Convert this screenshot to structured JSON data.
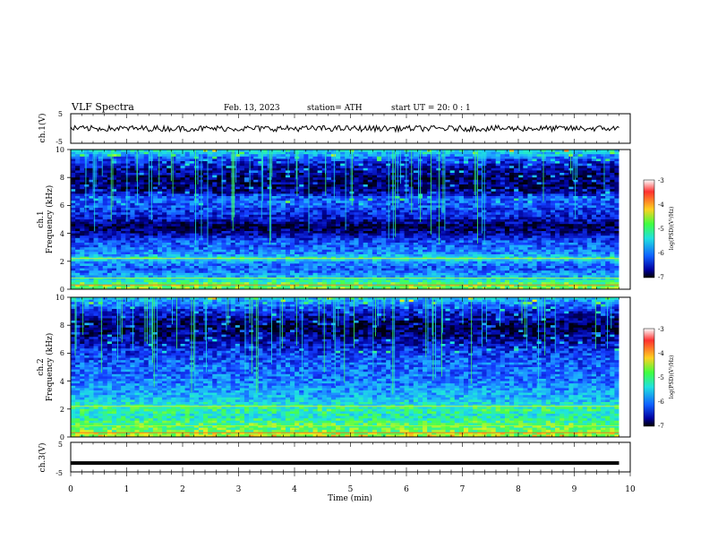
{
  "header": {
    "title": "VLF  Spectra",
    "date": "Feb. 13, 2023",
    "station": "station= ATH",
    "start": "start  UT  =    20: 0   : 1"
  },
  "panels": {
    "ch1_voltage": {
      "ylabel": "ch.1(V)",
      "ticks": [
        "5",
        "-5"
      ]
    },
    "ch1_spectrogram": {
      "ylabel_ch": "ch.1",
      "ylabel": "Frequency  (kHz)",
      "ticks": [
        "10",
        "8",
        "6",
        "4",
        "2",
        "0"
      ]
    },
    "ch2_spectrogram": {
      "ylabel_ch": "ch.2",
      "ylabel": "Frequency  (kHz)",
      "ticks": [
        "10",
        "8",
        "6",
        "4",
        "2",
        "0"
      ]
    },
    "ch3_voltage": {
      "ylabel": "ch.3(V)",
      "ticks": [
        "5",
        "-5"
      ]
    }
  },
  "xaxis": {
    "label": "Time  (min)",
    "ticks": [
      "0",
      "1",
      "2",
      "3",
      "4",
      "5",
      "6",
      "7",
      "8",
      "9",
      "10"
    ]
  },
  "colorbars": {
    "ticks": [
      "-3",
      "-4",
      "-5",
      "-6",
      "-7"
    ],
    "label": "log(PSD)(V²/Hz)"
  },
  "colors": {
    "background": "#000010",
    "low": "#0a1a8c",
    "mid": "#1f8fff",
    "cyan": "#22d8e0",
    "green": "#4cff5a",
    "yellow": "#f0f020",
    "red": "#e02020"
  },
  "chart_data": [
    {
      "type": "line",
      "name": "ch.1(V)",
      "x_range": [
        0,
        9.8
      ],
      "ylim": [
        -5,
        5
      ],
      "approx_level": 0,
      "approx_amplitude": 1
    },
    {
      "type": "heatmap",
      "name": "ch.1",
      "xlim": [
        0,
        10
      ],
      "ylim": [
        0,
        10
      ],
      "xlabel": "Time  (min)",
      "ylabel": "Frequency  (kHz)",
      "color_scale": "log(PSD)(V²/Hz)",
      "clim": [
        -7,
        -3
      ],
      "bands": [
        {
          "freq_khz": 10.0,
          "level": -5.0
        },
        {
          "freq_khz": 9.0,
          "level": -6.3
        },
        {
          "freq_khz": 8.0,
          "level": -6.7
        },
        {
          "freq_khz": 7.0,
          "level": -6.6
        },
        {
          "freq_khz": 6.5,
          "level": -5.8
        },
        {
          "freq_khz": 6.0,
          "level": -5.9
        },
        {
          "freq_khz": 5.5,
          "level": -6.1
        },
        {
          "freq_khz": 5.0,
          "level": -6.3
        },
        {
          "freq_khz": 4.5,
          "level": -6.8
        },
        {
          "freq_khz": 4.0,
          "level": -6.5
        },
        {
          "freq_khz": 3.5,
          "level": -6.0
        },
        {
          "freq_khz": 3.0,
          "level": -5.8
        },
        {
          "freq_khz": 2.5,
          "level": -5.6
        },
        {
          "freq_khz": 2.2,
          "level": -4.8
        },
        {
          "freq_khz": 2.0,
          "level": -5.5
        },
        {
          "freq_khz": 1.5,
          "level": -5.9
        },
        {
          "freq_khz": 1.0,
          "level": -5.5
        },
        {
          "freq_khz": 0.5,
          "level": -4.7
        },
        {
          "freq_khz": 0.2,
          "level": -4.4
        }
      ]
    },
    {
      "type": "heatmap",
      "name": "ch.2",
      "xlim": [
        0,
        10
      ],
      "ylim": [
        0,
        10
      ],
      "xlabel": "Time  (min)",
      "ylabel": "Frequency  (kHz)",
      "color_scale": "log(PSD)(V²/Hz)",
      "clim": [
        -7,
        -3
      ],
      "bands": [
        {
          "freq_khz": 10.0,
          "level": -5.2
        },
        {
          "freq_khz": 9.0,
          "level": -6.2
        },
        {
          "freq_khz": 8.0,
          "level": -6.8
        },
        {
          "freq_khz": 7.0,
          "level": -6.5
        },
        {
          "freq_khz": 6.0,
          "level": -6.0
        },
        {
          "freq_khz": 5.0,
          "level": -5.8
        },
        {
          "freq_khz": 4.0,
          "level": -5.7
        },
        {
          "freq_khz": 3.0,
          "level": -5.4
        },
        {
          "freq_khz": 2.5,
          "level": -5.2
        },
        {
          "freq_khz": 2.0,
          "level": -4.7
        },
        {
          "freq_khz": 1.5,
          "level": -5.0
        },
        {
          "freq_khz": 1.0,
          "level": -4.6
        },
        {
          "freq_khz": 0.5,
          "level": -4.5
        },
        {
          "freq_khz": 0.2,
          "level": -4.2
        }
      ]
    },
    {
      "type": "line",
      "name": "ch.3(V)",
      "x_range": [
        0,
        9.8
      ],
      "ylim": [
        -5,
        5
      ],
      "approx_level": -2,
      "approx_amplitude": 0
    }
  ]
}
